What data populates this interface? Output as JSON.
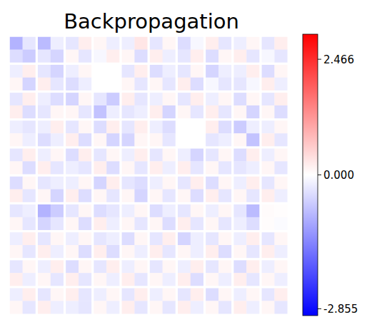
{
  "chart_data": {
    "type": "heatmap",
    "title": "Backpropagation",
    "color": "bwr",
    "tick_labels": false,
    "cells": [
      [
        -0.9,
        -0.3,
        -0.8,
        -0.2,
        -0.3,
        0.2,
        0.1,
        -0.2,
        -0.2,
        0.3,
        -0.3,
        0.1,
        -0.4,
        -0.1,
        0.2,
        -0.3,
        -0.2,
        0.1,
        -0.3,
        0.2
      ],
      [
        -0.4,
        -0.6,
        -0.3,
        -0.5,
        0.1,
        -0.3,
        -0.1,
        0.2,
        0.1,
        -0.4,
        0.2,
        -0.2,
        -0.3,
        0.2,
        -0.4,
        0.1,
        0.2,
        -0.3,
        -0.1,
        -0.3
      ],
      [
        -0.2,
        0.2,
        -0.3,
        -0.5,
        -0.2,
        0.1,
        0,
        0,
        -0.3,
        0.2,
        -0.4,
        -0.2,
        -0.3,
        0.1,
        -0.5,
        -0.2,
        -0.2,
        0.2,
        -0.4,
        0.1
      ],
      [
        0.1,
        -0.5,
        0.2,
        -0.3,
        -0.4,
        -0.2,
        0,
        0,
        0.1,
        -0.3,
        0.1,
        -0.3,
        0.2,
        -0.4,
        -0.1,
        -0.3,
        -0.3,
        -0.1,
        0.2,
        -0.2
      ],
      [
        -0.3,
        0.2,
        -0.2,
        -0.4,
        -0.5,
        0.1,
        -0.3,
        -0.6,
        0.2,
        -0.3,
        -0.2,
        0.1,
        -0.3,
        0.2,
        -0.2,
        0.1,
        -0.4,
        0.1,
        -0.3,
        0.2
      ],
      [
        0.2,
        -0.4,
        -0.3,
        0.1,
        0.1,
        -0.3,
        -0.7,
        -0.2,
        -0.3,
        -0.2,
        0.2,
        -0.5,
        0.1,
        -0.3,
        0.2,
        -0.3,
        0.1,
        -0.5,
        0.1,
        -0.4
      ],
      [
        -0.2,
        -0.3,
        -0.2,
        0.2,
        -0.3,
        0.1,
        -0.4,
        0.2,
        -0.3,
        0.2,
        -0.2,
        -0.4,
        0,
        0,
        0.2,
        -0.4,
        -0.6,
        -0.2,
        -0.2,
        0.1
      ],
      [
        0.1,
        -0.2,
        -0.4,
        -0.2,
        0.2,
        -0.4,
        0.1,
        -0.5,
        -0.5,
        0.1,
        0.1,
        -0.3,
        0,
        0,
        -0.3,
        -0.2,
        0.1,
        -0.7,
        0.2,
        -0.3
      ],
      [
        -0.3,
        0.2,
        -0.2,
        0.1,
        -0.4,
        0.2,
        -0.3,
        0.1,
        -0.2,
        0.2,
        -0.3,
        0.1,
        -0.2,
        -0.5,
        -0.3,
        0.1,
        -0.4,
        0.2,
        -0.2,
        0.1
      ],
      [
        0.1,
        -0.4,
        0.2,
        -0.3,
        -0.2,
        -0.3,
        0.2,
        -0.4,
        0.1,
        -0.3,
        0.2,
        -0.2,
        0.2,
        -0.3,
        0.1,
        -0.3,
        -0.3,
        -0.2,
        0.1,
        -0.3
      ],
      [
        -0.4,
        0.1,
        -0.3,
        -0.2,
        -0.2,
        0.1,
        -0.5,
        0.2,
        -0.3,
        -0.4,
        -0.2,
        0.1,
        -0.3,
        0.2,
        -0.4,
        0.1,
        -0.2,
        0.2,
        -0.3,
        0.1
      ],
      [
        0.2,
        -0.3,
        0.1,
        -0.5,
        0.2,
        -0.4,
        0.1,
        -0.3,
        0.1,
        -0.5,
        0.1,
        -0.3,
        0.1,
        -0.4,
        0.2,
        -0.3,
        0.1,
        -0.3,
        0.2,
        -0.2
      ],
      [
        -0.3,
        -0.2,
        -0.9,
        -0.6,
        -0.3,
        0.1,
        -0.4,
        -0.3,
        -0.2,
        0.1,
        -0.4,
        -0.2,
        -0.3,
        0.1,
        -0.2,
        0.1,
        -0.3,
        -0.8,
        0.05,
        0.02
      ],
      [
        0.1,
        -0.3,
        -0.5,
        -0.3,
        0.1,
        -0.4,
        0.2,
        -0.2,
        0.1,
        -0.3,
        0.1,
        -0.4,
        0.2,
        -0.3,
        0.1,
        -0.3,
        -0.2,
        -0.4,
        0.03,
        -0.05
      ],
      [
        -0.2,
        0.2,
        -0.3,
        0.1,
        -0.2,
        0.1,
        -0.3,
        -0.2,
        -0.4,
        0.1,
        -0.3,
        0.2,
        -0.5,
        -0.2,
        -0.3,
        0.1,
        -0.2,
        0.2,
        -0.3,
        0.1
      ],
      [
        0.1,
        -0.3,
        0.2,
        -0.2,
        0.1,
        -0.4,
        0.2,
        -0.4,
        0.1,
        -0.2,
        0.2,
        -0.3,
        0.1,
        -0.2,
        0.2,
        -0.4,
        0.1,
        -0.3,
        0.2,
        -0.2
      ],
      [
        -0.3,
        0.1,
        -0.2,
        0.2,
        -0.4,
        0.1,
        -0.3,
        0.2,
        -0.2,
        0.1,
        -0.3,
        0.1,
        -0.2,
        0.2,
        -0.3,
        0.1,
        -0.4,
        0.2,
        -0.2,
        0.1
      ],
      [
        0.2,
        -0.2,
        0.1,
        -0.3,
        0.2,
        -0.3,
        0.1,
        -0.2,
        0.2,
        -0.3,
        0.1,
        -0.2,
        0.2,
        -0.4,
        0.1,
        -0.2,
        0.2,
        -0.3,
        0.1,
        -0.2
      ],
      [
        -0.2,
        0.2,
        -0.3,
        0.1,
        0.2,
        -0.3,
        -0.2,
        0.1,
        -0.3,
        0.2,
        -0.2,
        0.1,
        -0.3,
        0.2,
        -0.4,
        0.1,
        -0.2,
        0.1,
        -0.3,
        0.2
      ],
      [
        0.1,
        -0.3,
        0.2,
        -0.2,
        -0.2,
        -0.3,
        0.1,
        -0.2,
        0.2,
        -0.3,
        0.1,
        -0.3,
        0.2,
        -0.2,
        0.1,
        -0.3,
        0.2,
        -0.2,
        0.1,
        -0.3
      ]
    ],
    "colorbar_range": [
      -3.0,
      3.0
    ],
    "colorbar_ticks": [
      2.466,
      {
        "value": 0,
        "label": "0.000"
      },
      -2.855
    ]
  }
}
